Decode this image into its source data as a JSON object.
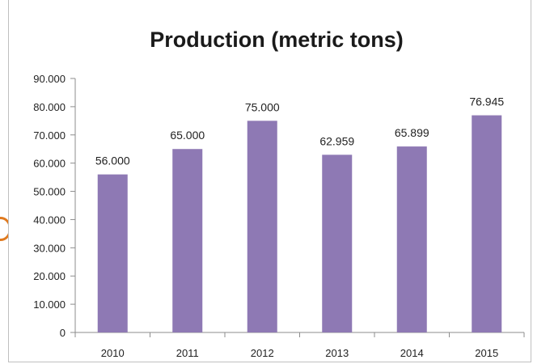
{
  "chart_data": {
    "type": "bar",
    "title": "Production (metric tons)",
    "xlabel": "",
    "ylabel": "",
    "categories": [
      "2010",
      "2011",
      "2012",
      "2013",
      "2014",
      "2015"
    ],
    "values": [
      56000,
      65000,
      75000,
      62959,
      65899,
      76945
    ],
    "value_labels": [
      "56.000",
      "65.000",
      "75.000",
      "62.959",
      "65.899",
      "76.945"
    ],
    "ylim": [
      0,
      90000
    ],
    "yticks": [
      0,
      10000,
      20000,
      30000,
      40000,
      50000,
      60000,
      70000,
      80000,
      90000
    ],
    "ytick_labels": [
      "0",
      "10.000",
      "20.000",
      "30.000",
      "40.000",
      "50.000",
      "60.000",
      "70.000",
      "80.000",
      "90.000"
    ],
    "grid": false,
    "legend": "none",
    "bar_color": "#8e79b4"
  }
}
